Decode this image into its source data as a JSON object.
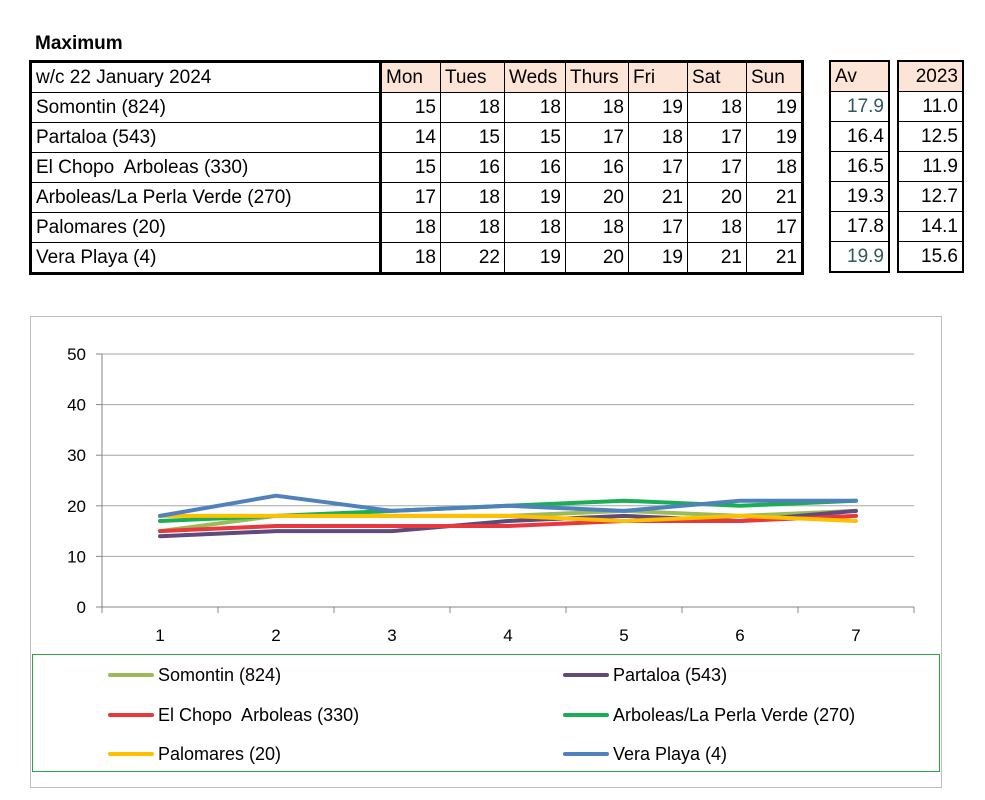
{
  "heading": "Maximum",
  "table": {
    "corner": "w/c 22 January 2024",
    "days": [
      "Mon",
      "Tues",
      "Weds",
      "Thurs",
      "Fri",
      "Sat",
      "Sun"
    ],
    "av_header": "Av",
    "year_header": "2023",
    "rows": [
      {
        "name": "Somontin (824)",
        "values": [
          "15",
          "18",
          "18",
          "18",
          "19",
          "18",
          "19"
        ],
        "av": "17.9",
        "year": "11.0"
      },
      {
        "name": "Partaloa (543)",
        "values": [
          "14",
          "15",
          "15",
          "17",
          "18",
          "17",
          "19"
        ],
        "av": "16.4",
        "year": "12.5"
      },
      {
        "name": "El Chopo  Arboleas (330)",
        "values": [
          "15",
          "16",
          "16",
          "16",
          "17",
          "17",
          "18"
        ],
        "av": "16.5",
        "year": "11.9"
      },
      {
        "name": "Arboleas/La Perla Verde (270)",
        "values": [
          "17",
          "18",
          "19",
          "20",
          "21",
          "20",
          "21"
        ],
        "av": "19.3",
        "year": "12.7"
      },
      {
        "name": "Palomares (20)",
        "values": [
          "18",
          "18",
          "18",
          "18",
          "17",
          "18",
          "17"
        ],
        "av": "17.8",
        "year": "14.1"
      },
      {
        "name": "Vera Playa (4)",
        "values": [
          "18",
          "22",
          "19",
          "20",
          "19",
          "21",
          "21"
        ],
        "av": "19.9",
        "year": "15.6"
      }
    ]
  },
  "chart_data": {
    "type": "line",
    "x": [
      1,
      2,
      3,
      4,
      5,
      6,
      7
    ],
    "x_tick_labels": [
      "1",
      "2",
      "3",
      "4",
      "5",
      "6",
      "7"
    ],
    "y_tick_labels": [
      "0",
      "10",
      "20",
      "30",
      "40",
      "50"
    ],
    "ylim": [
      0,
      50
    ],
    "grid": true,
    "legend_position": "bottom",
    "series": [
      {
        "name": "Somontin (824)",
        "values": [
          15,
          18,
          18,
          18,
          19,
          18,
          19
        ],
        "color": "#9bbb59"
      },
      {
        "name": "Partaloa (543)",
        "values": [
          14,
          15,
          15,
          17,
          18,
          17,
          19
        ],
        "color": "#604a7b"
      },
      {
        "name": "El Chopo  Arboleas (330)",
        "values": [
          15,
          16,
          16,
          16,
          17,
          17,
          18
        ],
        "color": "#e8383d"
      },
      {
        "name": "Arboleas/La Perla Verde (270)",
        "values": [
          17,
          18,
          19,
          20,
          21,
          20,
          21
        ],
        "color": "#1aaf54"
      },
      {
        "name": "Palomares (20)",
        "values": [
          18,
          18,
          18,
          18,
          17,
          18,
          17
        ],
        "color": "#ffc000"
      },
      {
        "name": "Vera Playa (4)",
        "values": [
          18,
          22,
          19,
          20,
          19,
          21,
          21
        ],
        "color": "#4f81bd"
      }
    ]
  }
}
